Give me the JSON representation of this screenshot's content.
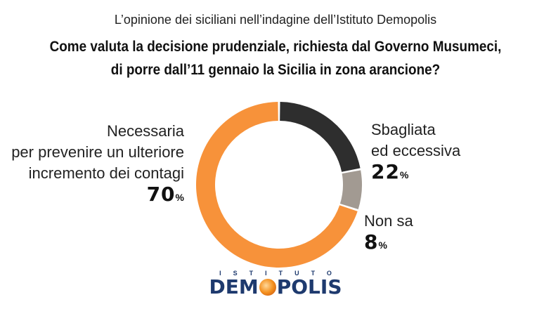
{
  "header": {
    "supertitle": "L’opinione dei siciliani nell’indagine dell’Istituto Demopolis",
    "title_line1": "Come valuta la decisione prudenziale, richiesta dal Governo Musumeci,",
    "title_line2": "di porre dall’11 gennaio la Sicilia in zona arancione?"
  },
  "chart_data": {
    "type": "pie",
    "variant": "donut",
    "title": "Come valuta la decisione prudenziale, richiesta dal Governo Musumeci, di porre dall’11 gennaio la Sicilia in zona arancione?",
    "slices": [
      {
        "label_lines": [
          "Sbagliata",
          "ed eccessiva"
        ],
        "value": 22,
        "value_text": "22",
        "color": "#2e2e2e"
      },
      {
        "label_lines": [
          "Non sa"
        ],
        "value": 8,
        "value_text": "8",
        "color": "#a29a92"
      },
      {
        "label_lines": [
          "Necessaria",
          "per prevenire un ulteriore",
          "incremento dei contagi"
        ],
        "value": 70,
        "value_text": "70",
        "color": "#f7923a"
      }
    ],
    "unit": "%"
  },
  "logo": {
    "top": "ISTITUTO",
    "main_pre": "DEM",
    "main_post": "POLIS"
  }
}
